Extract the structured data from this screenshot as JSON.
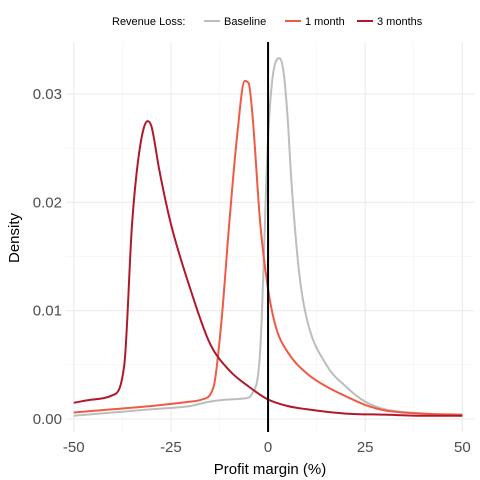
{
  "chart_data": {
    "type": "line",
    "title": "",
    "xlabel": "Profit margin (%)",
    "ylabel": "Density",
    "xlim": [
      -52,
      53
    ],
    "ylim": [
      -0.0012,
      0.0348
    ],
    "x_ticks": [
      -50,
      -25,
      0,
      25,
      50
    ],
    "x_tick_labels": [
      "-50",
      "-25",
      "0",
      "25",
      "50"
    ],
    "y_ticks": [
      0,
      0.01,
      0.02,
      0.03
    ],
    "y_tick_labels": [
      "0.00",
      "0.01",
      "0.02",
      "0.03"
    ],
    "grid": true,
    "vertical_reference_line_x": 0,
    "legend": {
      "title": "Revenue Loss:",
      "position": "top",
      "entries": [
        "Baseline",
        "1 month",
        "3 months"
      ]
    },
    "series": [
      {
        "name": "Baseline",
        "color": "#bdbdbd",
        "x": [
          -50,
          -40,
          -30,
          -20,
          -15,
          -10,
          -6,
          -4,
          -2,
          0,
          1,
          2,
          3,
          4,
          5,
          6,
          8,
          10,
          15,
          20,
          25,
          30,
          40,
          50
        ],
        "y": [
          0.0003,
          0.0006,
          0.0009,
          0.0012,
          0.0016,
          0.0018,
          0.0019,
          0.0024,
          0.0065,
          0.026,
          0.031,
          0.033,
          0.0333,
          0.032,
          0.028,
          0.022,
          0.0135,
          0.0092,
          0.005,
          0.003,
          0.0016,
          0.0009,
          0.0005,
          0.0003
        ]
      },
      {
        "name": "1 month",
        "color": "#ef5a46",
        "x": [
          -50,
          -40,
          -30,
          -20,
          -17,
          -14,
          -12,
          -10,
          -8,
          -6,
          -5,
          -4,
          -2,
          0,
          2,
          5,
          10,
          15,
          20,
          25,
          30,
          40,
          50
        ],
        "y": [
          0.0006,
          0.0009,
          0.0012,
          0.0016,
          0.0018,
          0.003,
          0.009,
          0.018,
          0.026,
          0.0312,
          0.031,
          0.028,
          0.018,
          0.012,
          0.0085,
          0.0062,
          0.0042,
          0.003,
          0.0021,
          0.0013,
          0.0008,
          0.0005,
          0.0004
        ]
      },
      {
        "name": "3 months",
        "color": "#b2182b",
        "x": [
          -50,
          -45,
          -40,
          -37,
          -35,
          -33,
          -31,
          -30,
          -28,
          -25,
          -20,
          -15,
          -10,
          -5,
          0,
          5,
          10,
          20,
          30,
          40,
          50
        ],
        "y": [
          0.0015,
          0.0018,
          0.0022,
          0.005,
          0.018,
          0.025,
          0.0275,
          0.027,
          0.023,
          0.018,
          0.012,
          0.007,
          0.0045,
          0.003,
          0.0018,
          0.0012,
          0.0009,
          0.0005,
          0.0004,
          0.0003,
          0.0003
        ]
      }
    ]
  }
}
